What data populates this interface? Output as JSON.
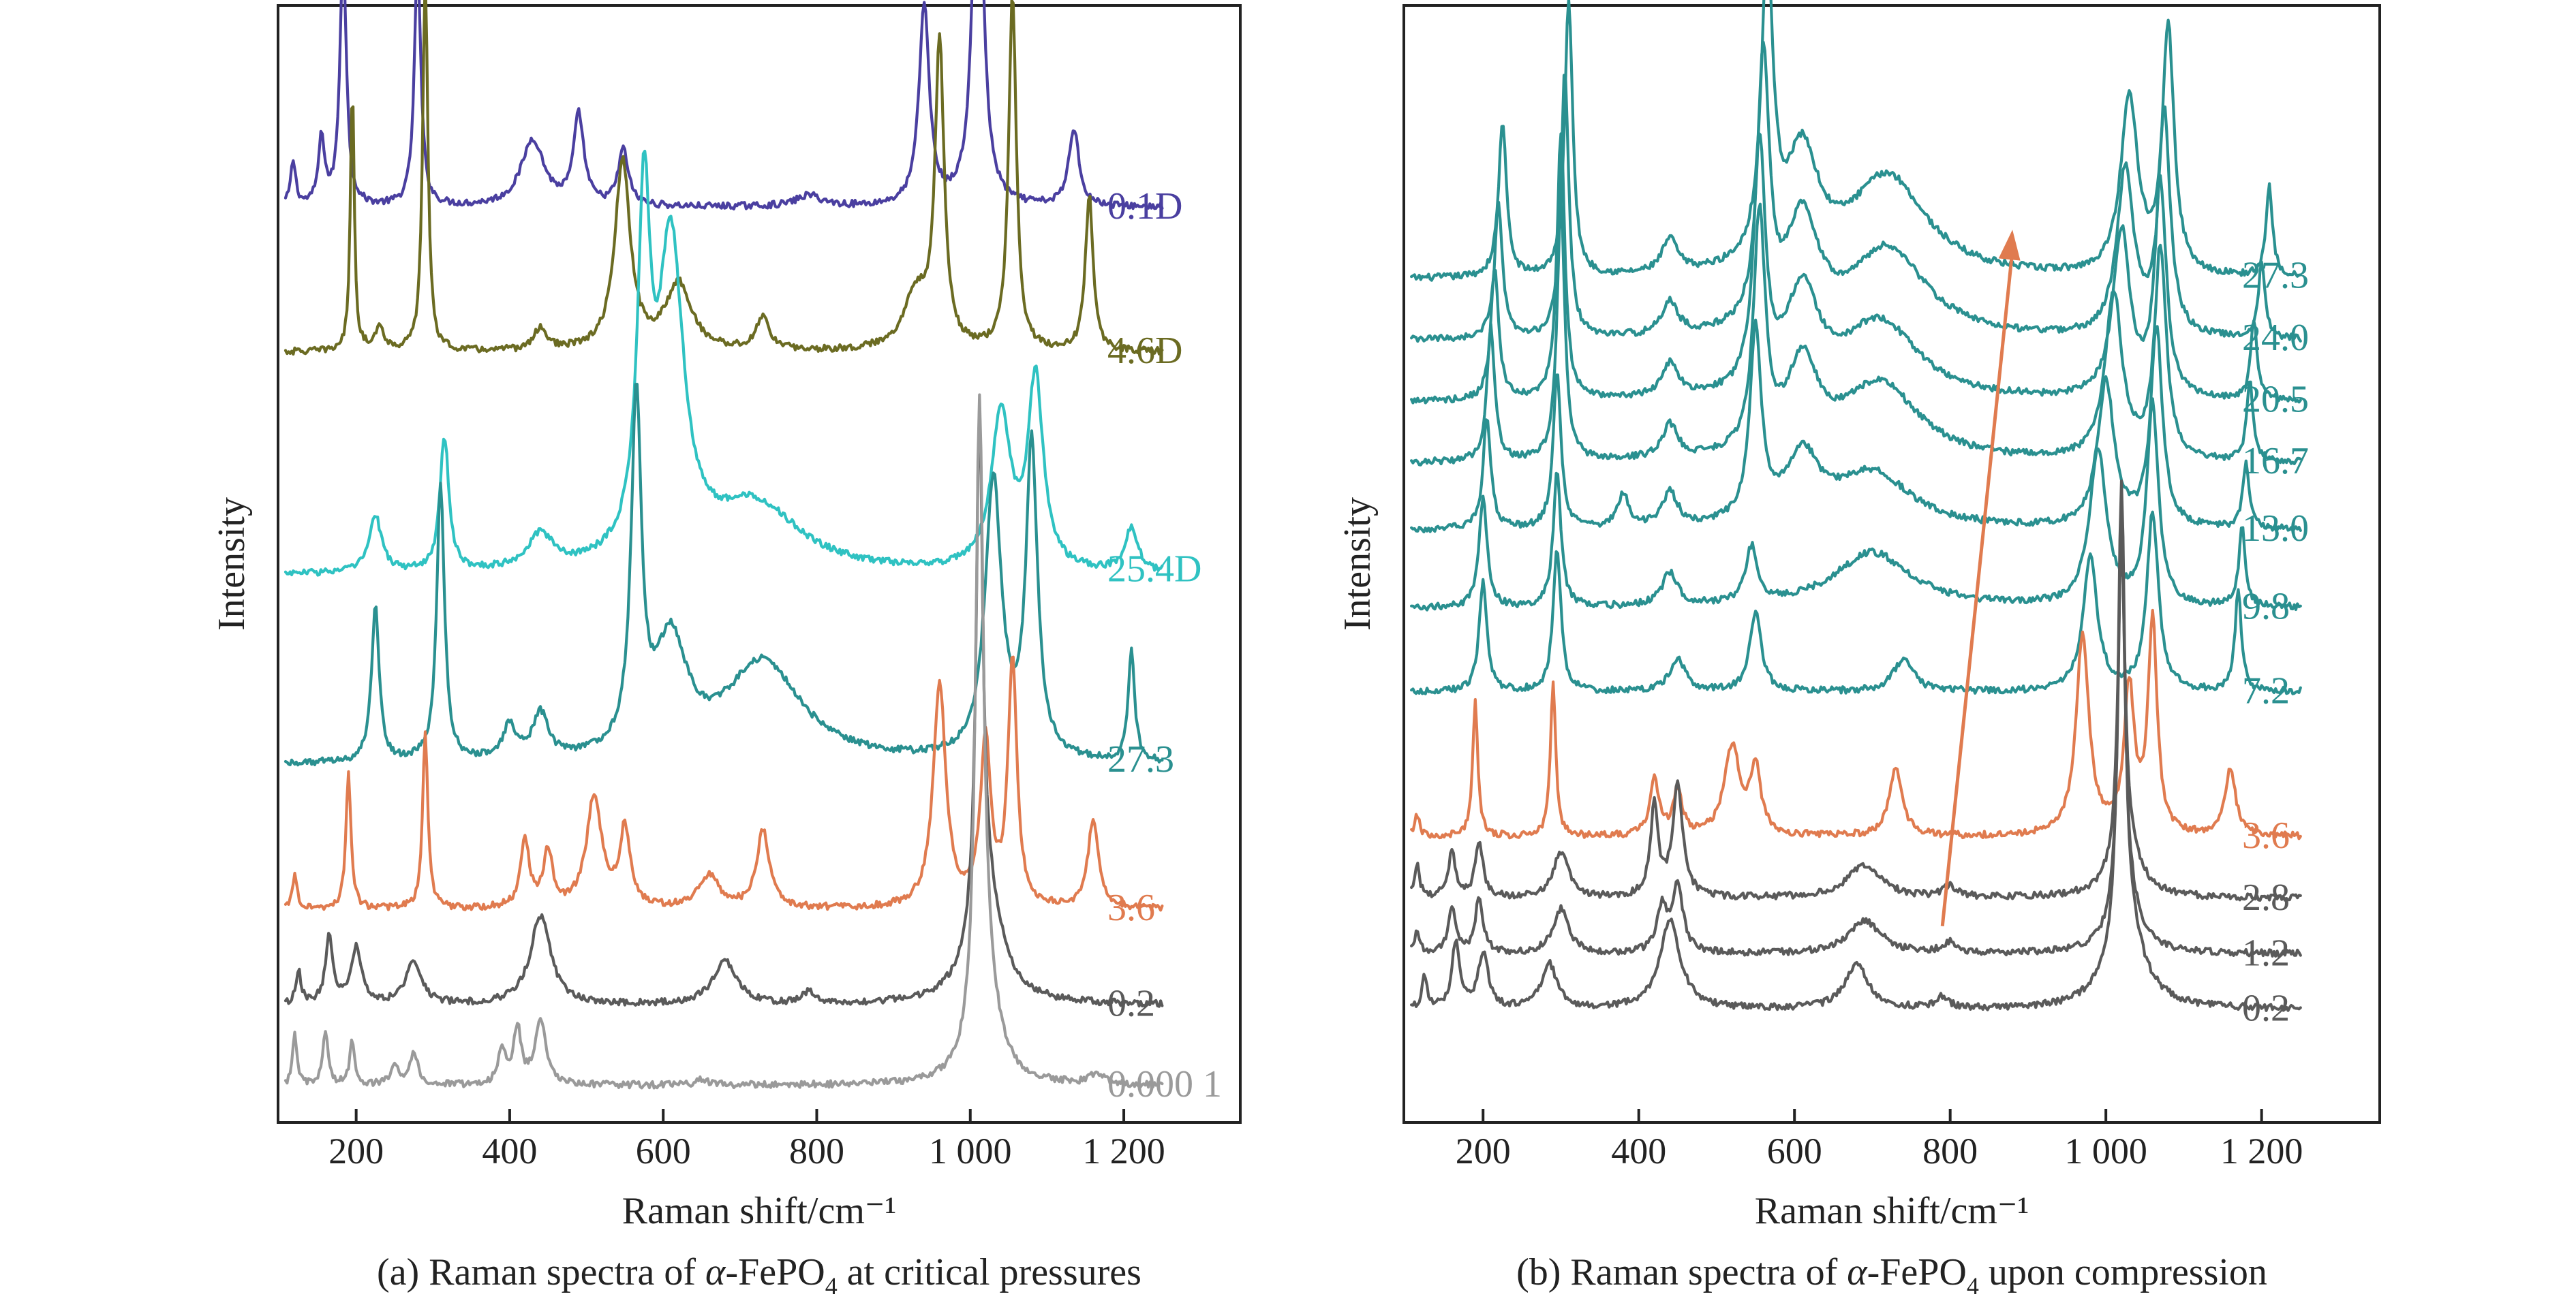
{
  "figure": {
    "panels": [
      {
        "caption_prefix": "(a) Raman spectra of ",
        "caption_alpha": "α",
        "caption_mid": "-FePO",
        "caption_sub": "4",
        "caption_suffix": " at critical pressures"
      },
      {
        "caption_prefix": "(b) Raman spectra of ",
        "caption_alpha": "α",
        "caption_mid": "-FePO",
        "caption_sub": "4",
        "caption_suffix": " upon compression"
      }
    ]
  },
  "chart_data": [
    {
      "type": "line",
      "xlabel": "Raman shift/cm⁻¹",
      "ylabel": "Intensity",
      "xlim": [
        100,
        1350
      ],
      "xticks": [
        200,
        400,
        600,
        800,
        1000,
        1200
      ],
      "xtick_labels": [
        "200",
        "400",
        "600",
        "800",
        "1 000",
        "1 200"
      ],
      "yticks": false,
      "grid": false,
      "offset_stack": true,
      "series": [
        {
          "name": "0.1D",
          "color": "#4a3fa0",
          "baseline": 0.82,
          "peaks": [
            [
              118,
              0.04,
              4
            ],
            [
              155,
              0.06,
              5
            ],
            [
              183,
              0.23,
              5
            ],
            [
              280,
              0.22,
              5
            ],
            [
              430,
              0.06,
              18
            ],
            [
              490,
              0.08,
              8
            ],
            [
              548,
              0.05,
              8
            ],
            [
              790,
              0.01,
              20
            ],
            [
              940,
              0.18,
              8
            ],
            [
              1010,
              0.36,
              8
            ],
            [
              1135,
              0.07,
              8
            ]
          ]
        },
        {
          "name": "4.6D",
          "color": "#6b6b22",
          "baseline": 0.69,
          "peaks": [
            [
              195,
              0.24,
              3
            ],
            [
              230,
              0.02,
              8
            ],
            [
              290,
              0.34,
              4
            ],
            [
              440,
              0.02,
              10
            ],
            [
              547,
              0.17,
              12
            ],
            [
              620,
              0.06,
              20
            ],
            [
              730,
              0.03,
              10
            ],
            [
              930,
              0.05,
              20
            ],
            [
              960,
              0.27,
              7
            ],
            [
              1055,
              0.32,
              6
            ],
            [
              1155,
              0.14,
              6
            ]
          ]
        },
        {
          "name": "25.4D",
          "color": "#2fc2c2",
          "baseline": 0.49,
          "peaks": [
            [
              225,
              0.05,
              10
            ],
            [
              315,
              0.12,
              7
            ],
            [
              440,
              0.03,
              20
            ],
            [
              575,
              0.3,
              10
            ],
            [
              610,
              0.28,
              20
            ],
            [
              720,
              0.06,
              70
            ],
            [
              1040,
              0.14,
              15
            ],
            [
              1085,
              0.17,
              12
            ],
            [
              1210,
              0.04,
              10
            ]
          ]
        },
        {
          "name": "27.3",
          "color": "#2a9090",
          "baseline": 0.32,
          "peaks": [
            [
              225,
              0.14,
              6
            ],
            [
              310,
              0.25,
              6
            ],
            [
              400,
              0.03,
              10
            ],
            [
              440,
              0.04,
              12
            ],
            [
              565,
              0.31,
              8
            ],
            [
              610,
              0.1,
              25
            ],
            [
              730,
              0.09,
              60
            ],
            [
              1030,
              0.25,
              13
            ],
            [
              1080,
              0.28,
              9
            ],
            [
              1210,
              0.1,
              5
            ]
          ]
        },
        {
          "name": "3.6",
          "color": "#e07b4f",
          "baseline": 0.19,
          "peaks": [
            [
              120,
              0.03,
              4
            ],
            [
              190,
              0.12,
              4
            ],
            [
              290,
              0.16,
              4
            ],
            [
              420,
              0.06,
              7
            ],
            [
              450,
              0.05,
              7
            ],
            [
              510,
              0.1,
              12
            ],
            [
              550,
              0.07,
              8
            ],
            [
              660,
              0.03,
              15
            ],
            [
              730,
              0.07,
              10
            ],
            [
              960,
              0.2,
              10
            ],
            [
              1020,
              0.15,
              8
            ],
            [
              1055,
              0.22,
              7
            ],
            [
              1160,
              0.08,
              8
            ]
          ]
        },
        {
          "name": "0.2",
          "color": "#5a5a5a",
          "baseline": 0.104,
          "peaks": [
            [
              125,
              0.03,
              4
            ],
            [
              165,
              0.06,
              6
            ],
            [
              200,
              0.05,
              8
            ],
            [
              275,
              0.04,
              12
            ],
            [
              440,
              0.08,
              16
            ],
            [
              680,
              0.04,
              18
            ],
            [
              790,
              0.01,
              10
            ],
            [
              1012,
              0.45,
              5
            ],
            [
              1020,
              0.1,
              25
            ]
          ]
        },
        {
          "name": "0.000 1",
          "color": "#9a9a9a",
          "baseline": 0.032,
          "peaks": [
            [
              120,
              0.05,
              3
            ],
            [
              160,
              0.05,
              4
            ],
            [
              195,
              0.04,
              4
            ],
            [
              250,
              0.02,
              6
            ],
            [
              275,
              0.03,
              6
            ],
            [
              390,
              0.03,
              6
            ],
            [
              410,
              0.05,
              6
            ],
            [
              440,
              0.06,
              8
            ],
            [
              650,
              0.005,
              10
            ],
            [
              1012,
              0.55,
              6
            ],
            [
              1020,
              0.08,
              20
            ],
            [
              1165,
              0.01,
              10
            ]
          ]
        }
      ]
    },
    {
      "type": "line",
      "xlabel": "Raman shift/cm⁻¹",
      "ylabel": "Intensity",
      "xlim": [
        100,
        1350
      ],
      "xticks": [
        200,
        400,
        600,
        800,
        1000,
        1200
      ],
      "xtick_labels": [
        "200",
        "400",
        "600",
        "800",
        "1 000",
        "1 200"
      ],
      "yticks": false,
      "grid": false,
      "offset_stack": true,
      "arrow": {
        "from": [
          790,
          0.175
        ],
        "to": [
          880,
          0.8
        ],
        "color": "#e07b4f"
      },
      "series": [
        {
          "name": "27.3",
          "color": "#2a9090",
          "baseline": 0.755,
          "peaks": [
            [
              225,
              0.14,
              6
            ],
            [
              310,
              0.25,
              6
            ],
            [
              440,
              0.03,
              12
            ],
            [
              565,
              0.27,
              9
            ],
            [
              610,
              0.1,
              25
            ],
            [
              720,
              0.09,
              60
            ],
            [
              1030,
              0.16,
              13
            ],
            [
              1080,
              0.22,
              9
            ],
            [
              1210,
              0.08,
              5
            ]
          ]
        },
        {
          "name": "24.0",
          "color": "#2a9090",
          "baseline": 0.7,
          "peaks": [
            [
              220,
              0.12,
              6
            ],
            [
              305,
              0.24,
              6
            ],
            [
              440,
              0.03,
              12
            ],
            [
              560,
              0.24,
              9
            ],
            [
              610,
              0.1,
              25
            ],
            [
              720,
              0.08,
              60
            ],
            [
              1025,
              0.15,
              13
            ],
            [
              1075,
              0.2,
              9
            ],
            [
              1200,
              0.07,
              5
            ]
          ]
        },
        {
          "name": "20.5",
          "color": "#2a9090",
          "baseline": 0.645,
          "peaks": [
            [
              215,
              0.12,
              6
            ],
            [
              300,
              0.24,
              6
            ],
            [
              440,
              0.03,
              12
            ],
            [
              555,
              0.22,
              9
            ],
            [
              610,
              0.09,
              25
            ],
            [
              710,
              0.07,
              60
            ],
            [
              1020,
              0.15,
              13
            ],
            [
              1070,
              0.19,
              9
            ],
            [
              1190,
              0.07,
              5
            ]
          ]
        },
        {
          "name": "16.7",
          "color": "#2a9090",
          "baseline": 0.59,
          "peaks": [
            [
              210,
              0.12,
              6
            ],
            [
              300,
              0.23,
              6
            ],
            [
              440,
              0.03,
              12
            ],
            [
              555,
              0.21,
              9
            ],
            [
              610,
              0.08,
              25
            ],
            [
              710,
              0.07,
              60
            ],
            [
              1010,
              0.15,
              13
            ],
            [
              1070,
              0.19,
              9
            ],
            [
              1185,
              0.07,
              5
            ]
          ]
        },
        {
          "name": "13.0",
          "color": "#2a9090",
          "baseline": 0.53,
          "peaks": [
            [
              205,
              0.1,
              6
            ],
            [
              295,
              0.14,
              6
            ],
            [
              380,
              0.03,
              8
            ],
            [
              440,
              0.03,
              12
            ],
            [
              550,
              0.17,
              9
            ],
            [
              610,
              0.06,
              25
            ],
            [
              700,
              0.05,
              60
            ],
            [
              1000,
              0.13,
              13
            ],
            [
              1065,
              0.18,
              9
            ],
            [
              1180,
              0.06,
              5
            ]
          ]
        },
        {
          "name": "9.8",
          "color": "#2a9090",
          "baseline": 0.46,
          "peaks": [
            [
              200,
              0.1,
              6
            ],
            [
              295,
              0.12,
              6
            ],
            [
              440,
              0.03,
              12
            ],
            [
              545,
              0.05,
              9
            ],
            [
              700,
              0.05,
              60
            ],
            [
              990,
              0.14,
              13
            ],
            [
              1060,
              0.18,
              9
            ],
            [
              1175,
              0.07,
              5
            ]
          ]
        },
        {
          "name": "7.2",
          "color": "#2a9090",
          "baseline": 0.385,
          "peaks": [
            [
              200,
              0.1,
              6
            ],
            [
              295,
              0.13,
              6
            ],
            [
              450,
              0.03,
              12
            ],
            [
              550,
              0.07,
              9
            ],
            [
              740,
              0.03,
              15
            ],
            [
              980,
              0.12,
              11
            ],
            [
              1060,
              0.16,
              9
            ],
            [
              1170,
              0.09,
              5
            ]
          ]
        },
        {
          "name": "3.6",
          "color": "#e07b4f",
          "baseline": 0.255,
          "peaks": [
            [
              115,
              0.02,
              4
            ],
            [
              190,
              0.12,
              4
            ],
            [
              290,
              0.14,
              4
            ],
            [
              420,
              0.05,
              7
            ],
            [
              450,
              0.04,
              7
            ],
            [
              520,
              0.08,
              12
            ],
            [
              550,
              0.06,
              8
            ],
            [
              730,
              0.06,
              10
            ],
            [
              970,
              0.18,
              10
            ],
            [
              1030,
              0.13,
              8
            ],
            [
              1060,
              0.19,
              7
            ],
            [
              1160,
              0.06,
              8
            ]
          ]
        },
        {
          "name": "2.8",
          "color": "#5a5a5a",
          "baseline": 0.2,
          "peaks": [
            [
              115,
              0.03,
              4
            ],
            [
              160,
              0.04,
              6
            ],
            [
              195,
              0.05,
              6
            ],
            [
              300,
              0.04,
              12
            ],
            [
              420,
              0.08,
              6
            ],
            [
              450,
              0.1,
              8
            ],
            [
              690,
              0.03,
              25
            ],
            [
              800,
              0.01,
              10
            ],
            [
              1020,
              0.28,
              5
            ],
            [
              1025,
              0.05,
              20
            ]
          ]
        },
        {
          "name": "1.2",
          "color": "#5a5a5a",
          "baseline": 0.15,
          "peaks": [
            [
              115,
              0.02,
              4
            ],
            [
              160,
              0.04,
              6
            ],
            [
              195,
              0.05,
              6
            ],
            [
              300,
              0.04,
              12
            ],
            [
              430,
              0.04,
              8
            ],
            [
              450,
              0.06,
              8
            ],
            [
              690,
              0.03,
              25
            ],
            [
              800,
              0.01,
              10
            ],
            [
              1020,
              0.34,
              5
            ],
            [
              1025,
              0.05,
              20
            ]
          ]
        },
        {
          "name": "0.2",
          "color": "#5a5a5a",
          "baseline": 0.1,
          "peaks": [
            [
              125,
              0.03,
              4
            ],
            [
              165,
              0.06,
              6
            ],
            [
              200,
              0.05,
              8
            ],
            [
              285,
              0.04,
              12
            ],
            [
              440,
              0.08,
              16
            ],
            [
              680,
              0.04,
              18
            ],
            [
              790,
              0.01,
              10
            ],
            [
              1020,
              0.4,
              5
            ],
            [
              1025,
              0.08,
              25
            ]
          ]
        }
      ]
    }
  ]
}
